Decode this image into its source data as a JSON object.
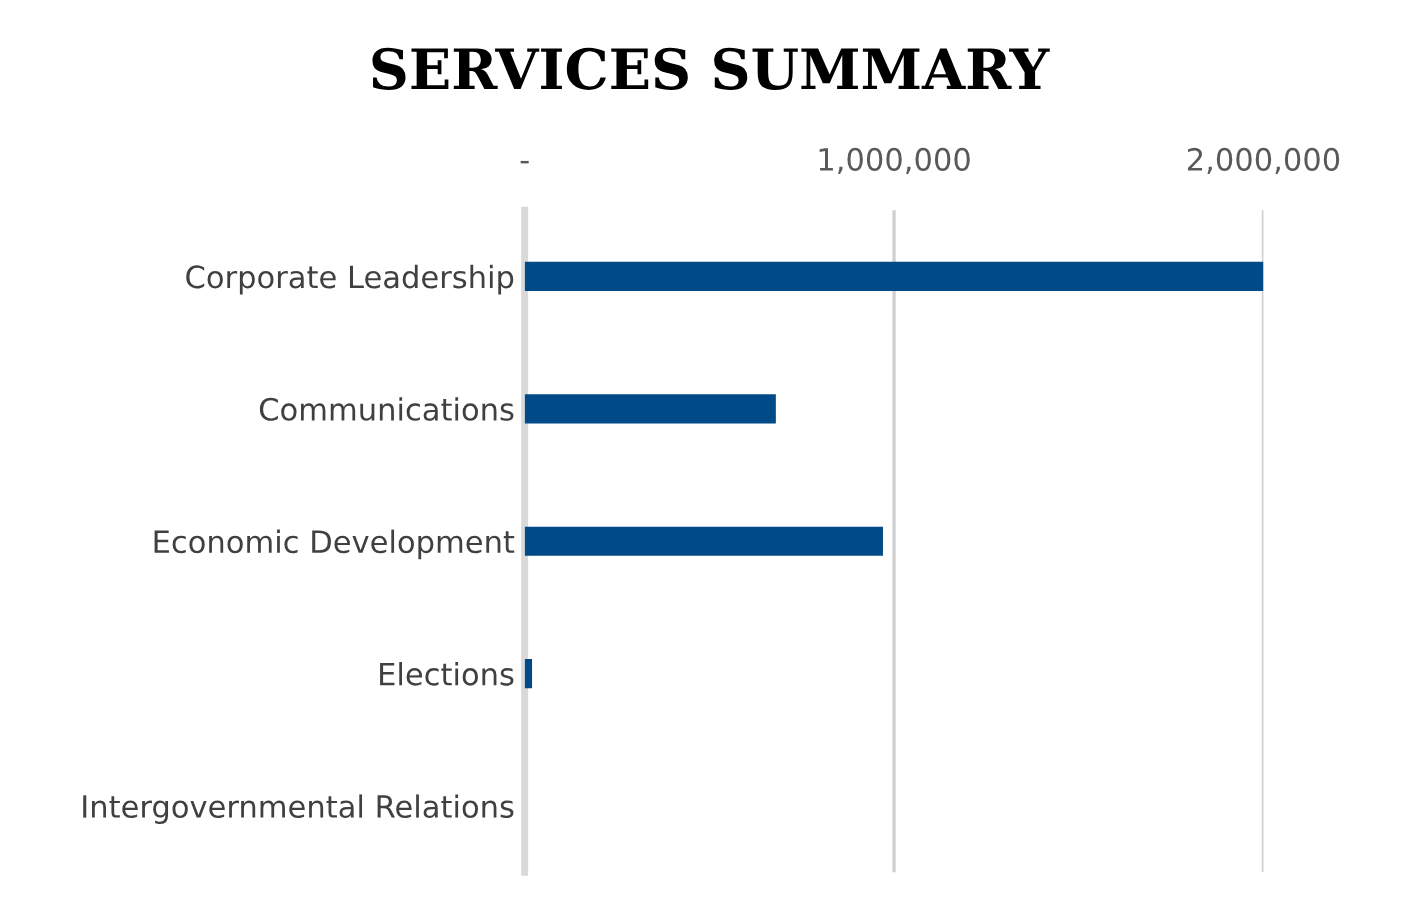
{
  "chart_data": {
    "type": "bar",
    "orientation": "horizontal",
    "title": "SERVICES SUMMARY",
    "categories": [
      "Corporate Leadership",
      "Communications",
      "Economic Development",
      "Elections",
      "Intergovernmental Relations"
    ],
    "values": [
      2000000,
      680000,
      970000,
      20000,
      0
    ],
    "color": "#004a87",
    "xlim": [
      0,
      2000000
    ],
    "xticks": [
      {
        "value": 0,
        "label": "-"
      },
      {
        "value": 1000000,
        "label": "1,000,000"
      },
      {
        "value": 2000000,
        "label": "2,000,000"
      }
    ],
    "grid": "x",
    "legend": false
  }
}
